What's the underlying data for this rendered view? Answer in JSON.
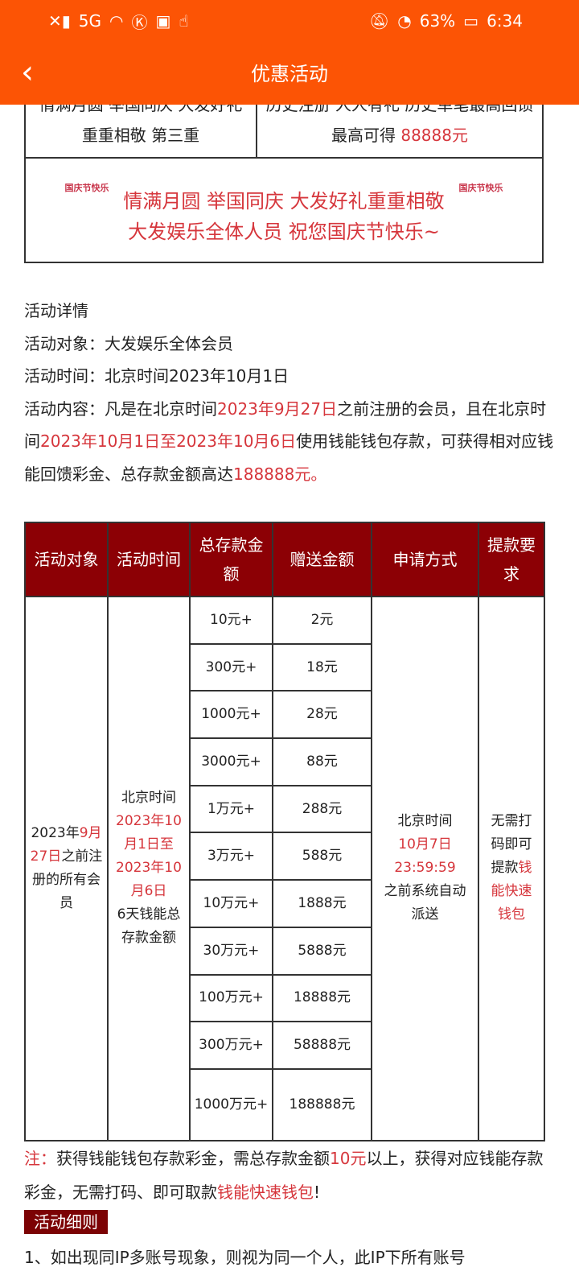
{
  "status_bar": {
    "battery": "63%",
    "time": "6:34",
    "network": "5G"
  },
  "header": {
    "title": "优惠活动"
  },
  "top_table": {
    "cells": [
      {
        "text": "情满月圆 举国同庆 大发好礼重重相敬 第三重"
      },
      {
        "text": "历史注册 人人有礼 历史单笔最高回馈 最高可得 ",
        "highlight": "88888元"
      }
    ]
  },
  "banner": {
    "stamp": "国庆节快乐",
    "line1": "情满月圆 举国同庆 大发好礼重重相敬",
    "line2": "大发娱乐全体人员 祝您国庆节快乐~"
  },
  "details": {
    "heading": "活动详情",
    "target": "活动对象：大发娱乐全体会员",
    "time": "活动时间：北京时间2023年10月1日",
    "content_a": "活动内容：凡是在北京时间",
    "content_b": "2023年9月27日",
    "content_c": "之前注册的会员，且在北京时间",
    "content_d": "2023年10月1日至2023年10月6日",
    "content_e": "使用钱能钱包存款，可获得相对应钱能回馈彩金、总存款金额高达",
    "content_f": "188888元。"
  },
  "promo_table": {
    "headers": [
      "活动对象",
      "活动时间",
      "总存款金额",
      "赠送金额",
      "申请方式",
      "提款要求"
    ],
    "target": {
      "a": "2023年",
      "b": "9月27日",
      "c": "之前注册的所有会员"
    },
    "time": {
      "a": "北京时间",
      "b": "2023年10月1日至2023年10月6日",
      "c": "6天钱能总存款金额"
    },
    "rows": [
      [
        "10元+",
        "2元"
      ],
      [
        "300元+",
        "18元"
      ],
      [
        "1000元+",
        "28元"
      ],
      [
        "3000元+",
        "88元"
      ],
      [
        "1万元+",
        "288元"
      ],
      [
        "3万元+",
        "588元"
      ],
      [
        "10万元+",
        "1888元"
      ],
      [
        "30万元+",
        "5888元"
      ],
      [
        "100万元+",
        "18888元"
      ],
      [
        "300万元+",
        "58888元"
      ],
      [
        "1000万元+",
        "188888元"
      ]
    ],
    "apply": {
      "a": "北京时间",
      "b": "10月7日 23:59:59",
      "c": "之前系统自动派送"
    },
    "withdraw": {
      "a": "无需打码即可提款",
      "b": "钱能快速钱包"
    }
  },
  "note": {
    "label": "注：",
    "a": "获得钱能钱包存款彩金，需总存款金额",
    "b": "10元",
    "c": "以上，获得对应钱能存款彩金，无需打码、即可取款",
    "d": "钱能快速钱包",
    "e": "!"
  },
  "rules": {
    "tag": "活动细则",
    "item1": "1、如出现同IP多账号现象，则视为同一个人，此IP下所有账号"
  }
}
